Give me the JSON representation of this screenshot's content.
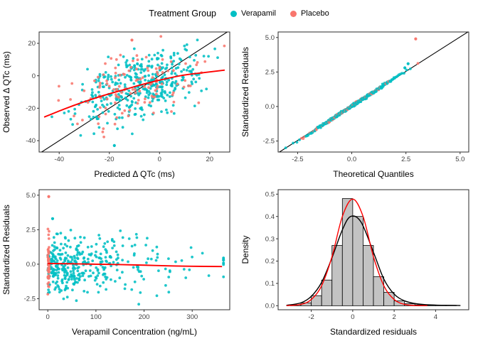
{
  "page": {
    "background": "#FFFFFF",
    "panel_border": "#2b2b2b",
    "tick_text_color": "#404040"
  },
  "legend": {
    "title": "Treatment Group",
    "items": [
      {
        "label": "Verapamil",
        "color": "#00BFC4"
      },
      {
        "label": "Placebo",
        "color": "#F8766D"
      }
    ]
  },
  "chart_data": [
    {
      "id": "observed-vs-predicted",
      "type": "scatter",
      "title": "",
      "xlabel": "Predicted Δ QTc (ms)",
      "ylabel": "Observed Δ QTc (ms)",
      "xlim": [
        -48,
        28
      ],
      "ylim": [
        -47,
        27
      ],
      "xticks": [
        -40,
        -20,
        0,
        20
      ],
      "xtick_labels": [
        "-40",
        "-20",
        "0",
        "20"
      ],
      "yticks": [
        -40,
        -20,
        0,
        20
      ],
      "ytick_labels": [
        "-40",
        "-20",
        "0",
        "20"
      ],
      "grid": false,
      "abline": {
        "slope": 1,
        "intercept": 0,
        "color": "#000000",
        "name": "identity-line"
      },
      "smooth": {
        "color": "#FF0000",
        "name": "loess-smooth",
        "points": [
          [
            -46,
            -25.5
          ],
          [
            -38,
            -20.5
          ],
          [
            -30,
            -16
          ],
          [
            -22,
            -12
          ],
          [
            -14,
            -8.5
          ],
          [
            -6,
            -5
          ],
          [
            2,
            -2
          ],
          [
            10,
            0.5
          ],
          [
            18,
            2
          ],
          [
            26,
            3.5
          ]
        ]
      },
      "groups": [
        {
          "name": "Verapamil",
          "color": "#00BFC4",
          "n": 400,
          "seed": 101,
          "x_mean": -6,
          "x_sd": 12,
          "y_intercept": -2.5,
          "y_slope": 0.38,
          "y_noise": 10
        },
        {
          "name": "Placebo",
          "color": "#F8766D",
          "n": 125,
          "seed": 202,
          "x_mean": -12,
          "x_sd": 14,
          "y_intercept": -2.5,
          "y_slope": 0.32,
          "y_noise": 11
        }
      ],
      "outliers": [
        {
          "x": -18,
          "y": -43,
          "group": "Verapamil"
        },
        {
          "x": -11,
          "y": 22,
          "group": "Placebo"
        }
      ]
    },
    {
      "id": "qq-plot",
      "type": "qq",
      "title": "",
      "xlabel": "Theoretical Quantiles",
      "ylabel": "Standardized Residuals",
      "xlim": [
        -3.4,
        5.4
      ],
      "ylim": [
        -3.3,
        5.4
      ],
      "xticks": [
        -2.5,
        0,
        2.5,
        5
      ],
      "xtick_labels": [
        "-2.5",
        "0.0",
        "2.5",
        "5.0"
      ],
      "yticks": [
        -2.5,
        0,
        2.5,
        5
      ],
      "ytick_labels": [
        "-2.5",
        "0.0",
        "2.5",
        "5.0"
      ],
      "grid": false,
      "abline": {
        "slope": 1,
        "intercept": 0.04,
        "color": "#000000",
        "name": "qq-reference-line"
      },
      "n": 440,
      "seed": 505,
      "placebo_fraction": 0.22,
      "outliers": [
        {
          "x": 2.95,
          "y": 4.9,
          "group": "Placebo"
        },
        {
          "x": 2.6,
          "y": 3.1,
          "group": "Verapamil"
        },
        {
          "x": 2.45,
          "y": 2.8,
          "group": "Verapamil"
        }
      ]
    },
    {
      "id": "residuals-vs-concentration",
      "type": "scatter",
      "title": "",
      "xlabel": "Verapamil Concentration (ng/mL)",
      "ylabel": "Standardized Residuals",
      "xlim": [
        -18,
        378
      ],
      "ylim": [
        -3.3,
        5.4
      ],
      "xticks": [
        0,
        100,
        200,
        300
      ],
      "xtick_labels": [
        "0",
        "100",
        "200",
        "300"
      ],
      "yticks": [
        -2.5,
        0,
        2.5,
        5
      ],
      "ytick_labels": [
        "-2.5",
        "0.0",
        "2.5",
        "5.0"
      ],
      "grid": false,
      "smooth": {
        "color": "#FF0000",
        "name": "loess-smooth",
        "points": [
          [
            0,
            0.05
          ],
          [
            50,
            0.03
          ],
          [
            100,
            0.0
          ],
          [
            150,
            -0.03
          ],
          [
            200,
            -0.07
          ],
          [
            250,
            -0.12
          ],
          [
            300,
            -0.15
          ],
          [
            362,
            -0.17
          ]
        ]
      },
      "groups": [
        {
          "name": "Verapamil",
          "color": "#00BFC4",
          "n": 380,
          "seed": 303,
          "x_dist": "exp",
          "x_scale": 70,
          "x_max": 365,
          "y_dist": "normal",
          "y_mean": 0,
          "y_sd": 1.05
        },
        {
          "name": "Placebo",
          "color": "#F8766D",
          "n": 45,
          "seed": 404,
          "x_dist": "uniform0",
          "x_spread": 3,
          "y_dist": "normal",
          "y_mean": 0,
          "y_sd": 1.1
        }
      ],
      "outliers": [
        {
          "x": 2,
          "y": 4.9,
          "group": "Placebo"
        },
        {
          "x": 10,
          "y": 3.3,
          "group": "Verapamil"
        },
        {
          "x": 365,
          "y": 0.3,
          "group": "Verapamil"
        }
      ]
    },
    {
      "id": "residual-histogram",
      "type": "histogram",
      "title": "",
      "xlabel": "Standardized residuals",
      "ylabel": "Density",
      "xlim": [
        -3.6,
        5.6
      ],
      "ylim": [
        -0.018,
        0.52
      ],
      "xticks": [
        -2,
        0,
        2,
        4
      ],
      "xtick_labels": [
        "-2",
        "0",
        "2",
        "4"
      ],
      "yticks": [
        0,
        0.1,
        0.2,
        0.3,
        0.4,
        0.5
      ],
      "ytick_labels": [
        "0.0",
        "0.1",
        "0.2",
        "0.3",
        "0.4",
        "0.5"
      ],
      "grid": false,
      "bar_fill": "#C3C3C3",
      "bar_stroke": "#000000",
      "bins": {
        "start": -3.0,
        "width": 0.5,
        "density": [
          0.004,
          0.013,
          0.045,
          0.115,
          0.27,
          0.48,
          0.4,
          0.27,
          0.13,
          0.06,
          0.022,
          0.009,
          0.004,
          0.002,
          0.001,
          0.002
        ]
      },
      "curves": [
        {
          "name": "kernel-density-curve",
          "color": "#000000",
          "points": [
            [
              -3.2,
              0.002
            ],
            [
              -2.5,
              0.013
            ],
            [
              -2,
              0.042
            ],
            [
              -1.5,
              0.105
            ],
            [
              -1,
              0.215
            ],
            [
              -0.5,
              0.34
            ],
            [
              -0.1,
              0.4
            ],
            [
              0.4,
              0.375
            ],
            [
              1,
              0.24
            ],
            [
              1.5,
              0.12
            ],
            [
              2,
              0.052
            ],
            [
              2.5,
              0.022
            ],
            [
              3,
              0.01
            ],
            [
              3.5,
              0.005
            ],
            [
              4,
              0.003
            ],
            [
              4.5,
              0.002
            ],
            [
              5.2,
              0.001
            ]
          ]
        },
        {
          "name": "normal-density-curve",
          "color": "#FF0000",
          "points": [
            [
              -3.2,
              0.0
            ],
            [
              -2.5,
              0.006
            ],
            [
              -2,
              0.028
            ],
            [
              -1.5,
              0.09
            ],
            [
              -1,
              0.22
            ],
            [
              -0.5,
              0.4
            ],
            [
              0,
              0.478
            ],
            [
              0.5,
              0.4
            ],
            [
              1,
              0.22
            ],
            [
              1.5,
              0.09
            ],
            [
              2,
              0.028
            ],
            [
              2.5,
              0.006
            ],
            [
              3,
              0.001
            ],
            [
              3.6,
              0.0
            ]
          ]
        }
      ]
    }
  ]
}
